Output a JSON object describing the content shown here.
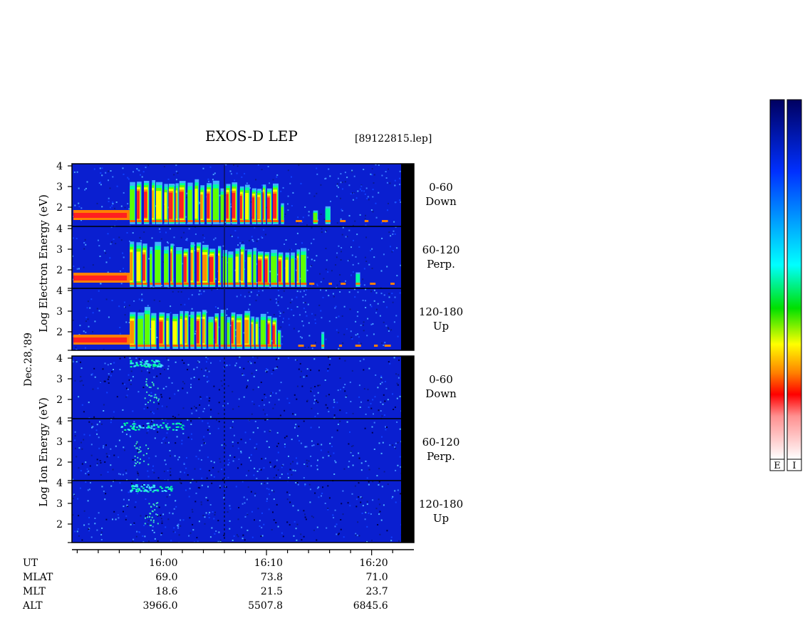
{
  "header": {
    "title": "EXOS-D LEP",
    "file": "[89122815.lep]"
  },
  "date_label": "Dec.28,'89",
  "electron_ylabel": [
    "Log",
    "Electron",
    "Energy",
    "(eV)"
  ],
  "ion_ylabel": [
    "Log",
    "Ion",
    "Energy",
    "(eV)"
  ],
  "y_ticks": [
    "4",
    "3",
    "2"
  ],
  "panels": [
    {
      "group": "electron",
      "pitch": "0-60",
      "dir": "Down"
    },
    {
      "group": "electron",
      "pitch": "60-120",
      "dir": "Perp."
    },
    {
      "group": "electron",
      "pitch": "120-180",
      "dir": "Up"
    },
    {
      "group": "ion",
      "pitch": "0-60",
      "dir": "Down"
    },
    {
      "group": "ion",
      "pitch": "60-120",
      "dir": "Perp."
    },
    {
      "group": "ion",
      "pitch": "120-180",
      "dir": "Up"
    }
  ],
  "footer": {
    "row_labels": [
      "UT",
      "MLAT",
      "MLT",
      "ALT"
    ],
    "columns": [
      {
        "UT": "16:00",
        "MLAT": "69.0",
        "MLT": "18.6",
        "ALT": "3966.0"
      },
      {
        "UT": "16:10",
        "MLAT": "73.8",
        "MLT": "21.5",
        "ALT": "5507.8"
      },
      {
        "UT": "16:20",
        "MLAT": "71.0",
        "MLT": "23.7",
        "ALT": "6845.6"
      }
    ]
  },
  "colorbar": {
    "labels": [
      "E",
      "I"
    ]
  },
  "colors": {
    "background": "#0a1fd0",
    "scale": [
      "#ffffff",
      "#ff2020",
      "#ff8000",
      "#ffff00",
      "#00e000",
      "#00ffff",
      "#0080ff",
      "#0000cc",
      "#000066"
    ]
  },
  "chart_data": {
    "type": "heatmap",
    "title": "EXOS-D LEP",
    "y_scale": "log",
    "y_range_log_eV": [
      1,
      4
    ],
    "x_ticks_UT": [
      "16:00",
      "16:10",
      "16:20"
    ],
    "series": [
      {
        "name": "Electron 0-60 Down",
        "low_energy_band_until_UT": "15:57",
        "activity_UT": [
          "15:57",
          "16:11"
        ],
        "peak_logE": 3.5
      },
      {
        "name": "Electron 60-120 Perp.",
        "low_energy_band_until_UT": "15:57",
        "activity_UT": [
          "15:57",
          "16:14"
        ],
        "peak_logE": 3.5
      },
      {
        "name": "Electron 120-180 Up",
        "low_energy_band_until_UT": "15:57",
        "activity_UT": [
          "15:57",
          "16:11"
        ],
        "peak_logE": 3.3
      },
      {
        "name": "Ion 0-60 Down",
        "activity_UT": [
          "15:57",
          "16:00"
        ],
        "peak_logE": 4.0
      },
      {
        "name": "Ion 60-120 Perp.",
        "activity_UT": [
          "15:56",
          "16:02"
        ],
        "peak_logE": 4.0
      },
      {
        "name": "Ion 120-180 Up",
        "activity_UT": [
          "15:57",
          "16:01"
        ],
        "peak_logE": 4.0
      }
    ]
  }
}
